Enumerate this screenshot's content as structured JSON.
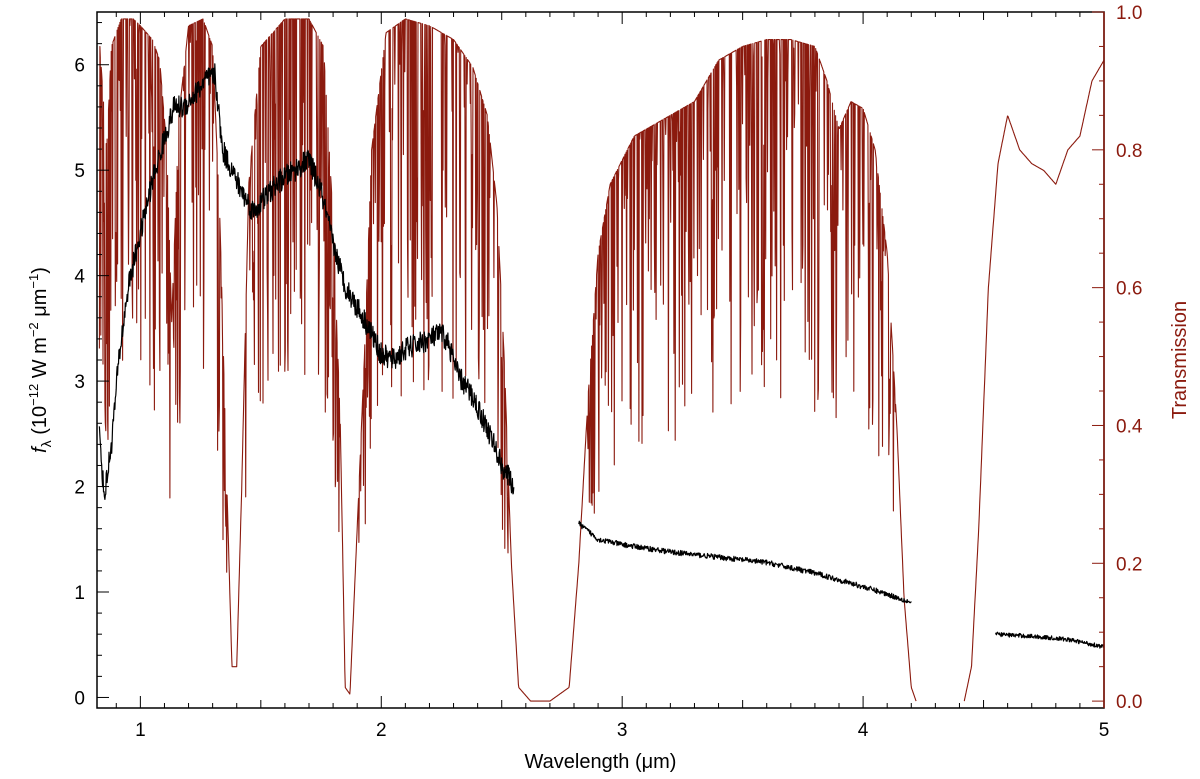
{
  "chart_data": {
    "type": "line",
    "xlabel": "Wavelength (μm)",
    "ylabel": {
      "prefix": "f",
      "subscript": "λ",
      "body": " (10",
      "exp1": "−12",
      "mid": " W m",
      "exp2": "−2",
      "mid2": " μm",
      "exp3": "−1",
      "suffix": ")"
    },
    "y2label": "Transmission",
    "xlim": [
      0.82,
      5.0
    ],
    "ylim": [
      -0.1,
      6.5
    ],
    "y2lim": [
      -0.01,
      1.0
    ],
    "x_ticks": [
      {
        "v": 1,
        "label": "1"
      },
      {
        "v": 2,
        "label": "2"
      },
      {
        "v": 3,
        "label": "3"
      },
      {
        "v": 4,
        "label": "4"
      },
      {
        "v": 5,
        "label": "5"
      }
    ],
    "y_ticks": [
      {
        "v": 0,
        "label": "0"
      },
      {
        "v": 1,
        "label": "1"
      },
      {
        "v": 2,
        "label": "2"
      },
      {
        "v": 3,
        "label": "3"
      },
      {
        "v": 4,
        "label": "4"
      },
      {
        "v": 5,
        "label": "5"
      },
      {
        "v": 6,
        "label": "6"
      }
    ],
    "y2_ticks": [
      {
        "v": 0.0,
        "label": "0.0"
      },
      {
        "v": 0.2,
        "label": "0.2"
      },
      {
        "v": 0.4,
        "label": "0.4"
      },
      {
        "v": 0.6,
        "label": "0.6"
      },
      {
        "v": 0.8,
        "label": "0.8"
      },
      {
        "v": 1.0,
        "label": "1.0"
      }
    ],
    "colors": {
      "flux": "#000000",
      "transmission": "#8b1a0e",
      "y2axis": "#8b1a0e",
      "frame": "#000000"
    },
    "series": [
      {
        "axis": "left",
        "color": "#000000",
        "segments": [
          [
            [
              0.83,
              2.5
            ],
            [
              0.85,
              1.9
            ],
            [
              0.88,
              2.4
            ],
            [
              0.91,
              3.2
            ],
            [
              0.95,
              3.9
            ],
            [
              1.0,
              4.4
            ],
            [
              1.05,
              4.9
            ],
            [
              1.1,
              5.3
            ],
            [
              1.14,
              5.6
            ],
            [
              1.18,
              5.6
            ],
            [
              1.22,
              5.7
            ],
            [
              1.27,
              5.85
            ],
            [
              1.31,
              5.9
            ],
            [
              1.34,
              5.2
            ],
            [
              1.38,
              5.0
            ],
            [
              1.42,
              4.8
            ],
            [
              1.47,
              4.6
            ],
            [
              1.52,
              4.75
            ],
            [
              1.58,
              4.9
            ],
            [
              1.64,
              5.0
            ],
            [
              1.7,
              5.1
            ],
            [
              1.75,
              4.8
            ],
            [
              1.8,
              4.3
            ],
            [
              1.85,
              3.9
            ],
            [
              1.9,
              3.7
            ],
            [
              1.95,
              3.5
            ],
            [
              2.0,
              3.25
            ],
            [
              2.05,
              3.2
            ],
            [
              2.1,
              3.3
            ],
            [
              2.15,
              3.35
            ],
            [
              2.2,
              3.4
            ],
            [
              2.25,
              3.45
            ],
            [
              2.28,
              3.35
            ],
            [
              2.32,
              3.05
            ],
            [
              2.38,
              2.85
            ],
            [
              2.45,
              2.5
            ],
            [
              2.5,
              2.2
            ],
            [
              2.55,
              2.0
            ]
          ],
          [
            [
              2.82,
              1.65
            ],
            [
              2.9,
              1.5
            ],
            [
              3.0,
              1.45
            ],
            [
              3.2,
              1.38
            ],
            [
              3.4,
              1.33
            ],
            [
              3.6,
              1.28
            ],
            [
              3.8,
              1.18
            ],
            [
              4.0,
              1.05
            ],
            [
              4.1,
              0.98
            ],
            [
              4.2,
              0.9
            ]
          ],
          [
            [
              4.55,
              0.6
            ],
            [
              4.7,
              0.58
            ],
            [
              4.85,
              0.55
            ],
            [
              5.0,
              0.48
            ]
          ]
        ],
        "noise": [
          0.22,
          0.05,
          0.04
        ]
      },
      {
        "axis": "right",
        "color": "#8b1a0e",
        "segments": [
          [
            [
              0.83,
              0.96
            ],
            [
              0.86,
              0.8
            ],
            [
              0.88,
              0.95
            ],
            [
              0.92,
              0.99
            ],
            [
              0.97,
              0.99
            ],
            [
              1.0,
              0.98
            ],
            [
              1.05,
              0.96
            ],
            [
              1.08,
              0.93
            ],
            [
              1.11,
              0.8
            ],
            [
              1.13,
              0.55
            ],
            [
              1.16,
              0.85
            ],
            [
              1.2,
              0.98
            ],
            [
              1.26,
              0.99
            ],
            [
              1.3,
              0.95
            ],
            [
              1.33,
              0.7
            ],
            [
              1.36,
              0.3
            ],
            [
              1.38,
              0.05
            ],
            [
              1.4,
              0.05
            ],
            [
              1.42,
              0.3
            ],
            [
              1.45,
              0.75
            ],
            [
              1.5,
              0.95
            ],
            [
              1.6,
              0.99
            ],
            [
              1.7,
              0.99
            ],
            [
              1.76,
              0.95
            ],
            [
              1.8,
              0.7
            ],
            [
              1.83,
              0.4
            ],
            [
              1.85,
              0.02
            ],
            [
              1.87,
              0.01
            ],
            [
              1.9,
              0.25
            ],
            [
              1.93,
              0.5
            ],
            [
              1.96,
              0.8
            ],
            [
              2.02,
              0.97
            ],
            [
              2.1,
              0.99
            ],
            [
              2.2,
              0.98
            ],
            [
              2.3,
              0.96
            ],
            [
              2.38,
              0.92
            ],
            [
              2.44,
              0.85
            ],
            [
              2.48,
              0.72
            ],
            [
              2.51,
              0.5
            ],
            [
              2.54,
              0.2
            ],
            [
              2.57,
              0.02
            ],
            [
              2.62,
              0.0
            ],
            [
              2.7,
              0.0
            ],
            [
              2.78,
              0.02
            ],
            [
              2.82,
              0.2
            ],
            [
              2.86,
              0.45
            ],
            [
              2.9,
              0.65
            ],
            [
              2.95,
              0.75
            ],
            [
              3.05,
              0.82
            ],
            [
              3.2,
              0.85
            ],
            [
              3.3,
              0.87
            ],
            [
              3.4,
              0.93
            ],
            [
              3.5,
              0.95
            ],
            [
              3.6,
              0.96
            ],
            [
              3.7,
              0.96
            ],
            [
              3.8,
              0.95
            ],
            [
              3.85,
              0.9
            ],
            [
              3.9,
              0.83
            ],
            [
              3.95,
              0.87
            ],
            [
              4.0,
              0.86
            ],
            [
              4.05,
              0.8
            ],
            [
              4.1,
              0.65
            ],
            [
              4.14,
              0.4
            ],
            [
              4.17,
              0.15
            ],
            [
              4.2,
              0.02
            ],
            [
              4.22,
              0.0
            ]
          ],
          [
            [
              4.42,
              0.0
            ],
            [
              4.45,
              0.05
            ],
            [
              4.48,
              0.25
            ],
            [
              4.52,
              0.6
            ],
            [
              4.56,
              0.78
            ],
            [
              4.6,
              0.85
            ],
            [
              4.65,
              0.8
            ],
            [
              4.7,
              0.78
            ],
            [
              4.75,
              0.77
            ],
            [
              4.8,
              0.75
            ],
            [
              4.85,
              0.8
            ],
            [
              4.9,
              0.82
            ],
            [
              4.95,
              0.9
            ],
            [
              5.0,
              0.93
            ]
          ]
        ],
        "noise": [
          0.28,
          0.0
        ]
      }
    ]
  }
}
